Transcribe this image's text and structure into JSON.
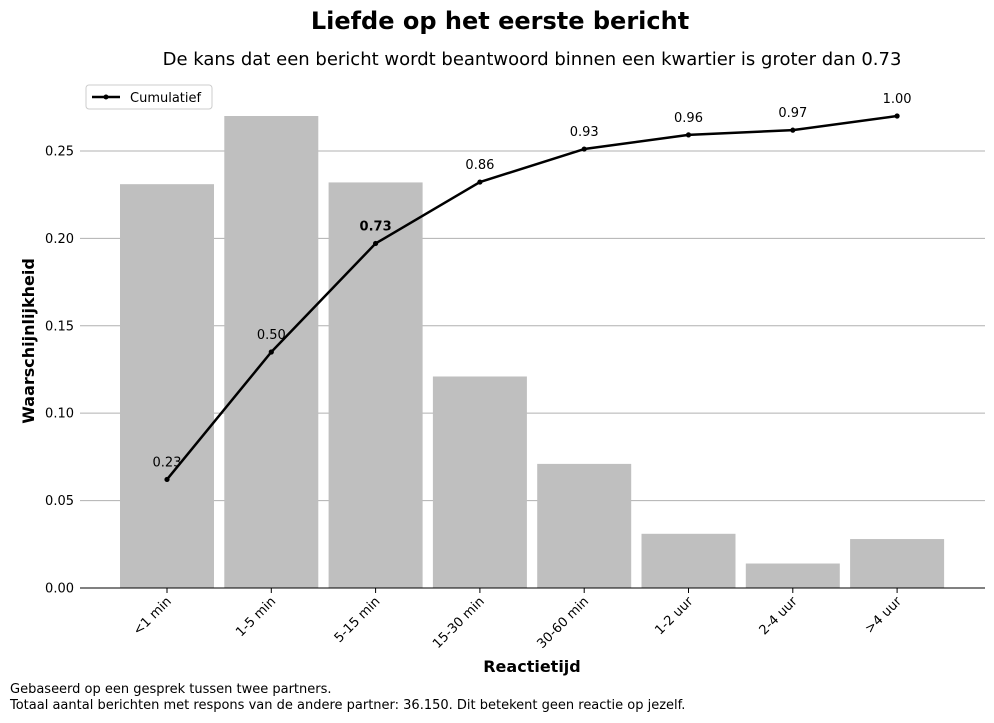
{
  "chart_data": {
    "type": "bar",
    "title": "Liefde op het eerste bericht",
    "subtitle": "De kans dat een bericht wordt beantwoord binnen een kwartier is groter dan 0.73",
    "xlabel": "Reactietijd",
    "ylabel": "Waarschijnlijkheid",
    "categories": [
      "<1 min",
      "1-5 min",
      "5-15 min",
      "15-30 min",
      "30-60 min",
      "1-2 uur",
      "2-4 uur",
      ">4 uur"
    ],
    "values": [
      0.231,
      0.27,
      0.232,
      0.121,
      0.071,
      0.031,
      0.014,
      0.028
    ],
    "ylim": [
      0,
      0.27
    ],
    "yticks": [
      0.0,
      0.05,
      0.1,
      0.15,
      0.2,
      0.25
    ],
    "ytick_labels": [
      "0.00",
      "0.05",
      "0.10",
      "0.15",
      "0.20",
      "0.25"
    ],
    "grid": "horizontal",
    "bar_color": "#bfbfbf",
    "line_color": "#000000",
    "cumulative": {
      "name": "Cumulatief",
      "values": [
        0.23,
        0.5,
        0.73,
        0.86,
        0.93,
        0.96,
        0.97,
        1.0
      ],
      "labels": [
        "0.23",
        "0.50",
        "0.73",
        "0.86",
        "0.93",
        "0.96",
        "0.97",
        "1.00"
      ],
      "highlight_index": 2
    },
    "legend_position": "top-left"
  },
  "footnote": {
    "line1": "Gebaseerd op een gesprek tussen twee partners.",
    "line2": "Totaal aantal berichten met respons van de andere partner: 36.150. Dit betekent geen reactie op jezelf."
  }
}
